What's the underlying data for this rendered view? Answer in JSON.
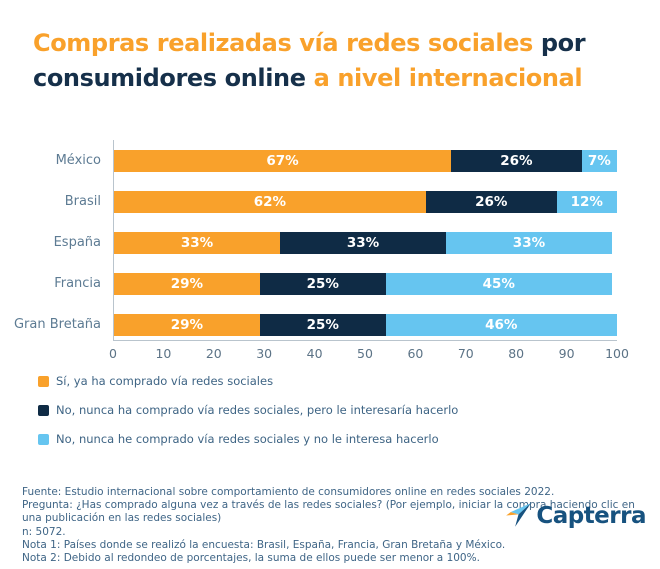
{
  "colors": {
    "orange": "#f9a12b",
    "navy": "#0f2b45",
    "light_blue": "#66c5f0",
    "title_navy": "#16304a",
    "axis_label": "#5d7b93",
    "footer_text": "#3f6586",
    "logo_blue": "#17527f"
  },
  "title": {
    "lines": [
      [
        {
          "text": "Compras realizadas vía redes sociales ",
          "color": "#f9a12b"
        },
        {
          "text": "por",
          "color": "#16304a"
        }
      ],
      [
        {
          "text": "consumidores online ",
          "color": "#16304a"
        },
        {
          "text": "a nivel internacional",
          "color": "#f9a12b"
        }
      ]
    ]
  },
  "chart_data": {
    "type": "bar",
    "orientation": "horizontal",
    "stacked": true,
    "categories": [
      "México",
      "Brasil",
      "España",
      "Francia",
      "Gran Bretaña"
    ],
    "series": [
      {
        "name": "Sí, ya ha comprado vía redes sociales",
        "color": "#f9a12b",
        "values": [
          67,
          62,
          33,
          29,
          29
        ]
      },
      {
        "name": "No, nunca ha comprado vía redes sociales, pero le interesaría hacerlo",
        "color": "#0f2b45",
        "values": [
          26,
          26,
          33,
          25,
          25
        ]
      },
      {
        "name": "No, nunca he comprado vía redes sociales y no le interesa hacerlo",
        "color": "#66c5f0",
        "values": [
          7,
          12,
          33,
          45,
          46
        ]
      }
    ],
    "value_suffix": "%",
    "x_ticks": [
      0,
      10,
      20,
      30,
      40,
      50,
      60,
      70,
      80,
      90,
      100
    ],
    "xlim": [
      0,
      100
    ],
    "grid": false,
    "legend_position": "bottom-left"
  },
  "footer": {
    "lines": [
      "Fuente: Estudio internacional sobre comportamiento de consumidores online en redes sociales 2022.",
      "Pregunta: ¿Has comprado alguna vez a través de las redes sociales? (Por ejemplo, iniciar la compra haciendo clic en",
      "una publicación en las redes sociales)",
      "n: 5072.",
      "Nota 1: Países donde se realizó la encuesta: Brasil, España, Francia, Gran Bretaña y México.",
      "Nota 2: Debido al redondeo de porcentajes, la suma de ellos puede ser menor a 100%."
    ]
  },
  "logo": {
    "text": "Capterra"
  }
}
